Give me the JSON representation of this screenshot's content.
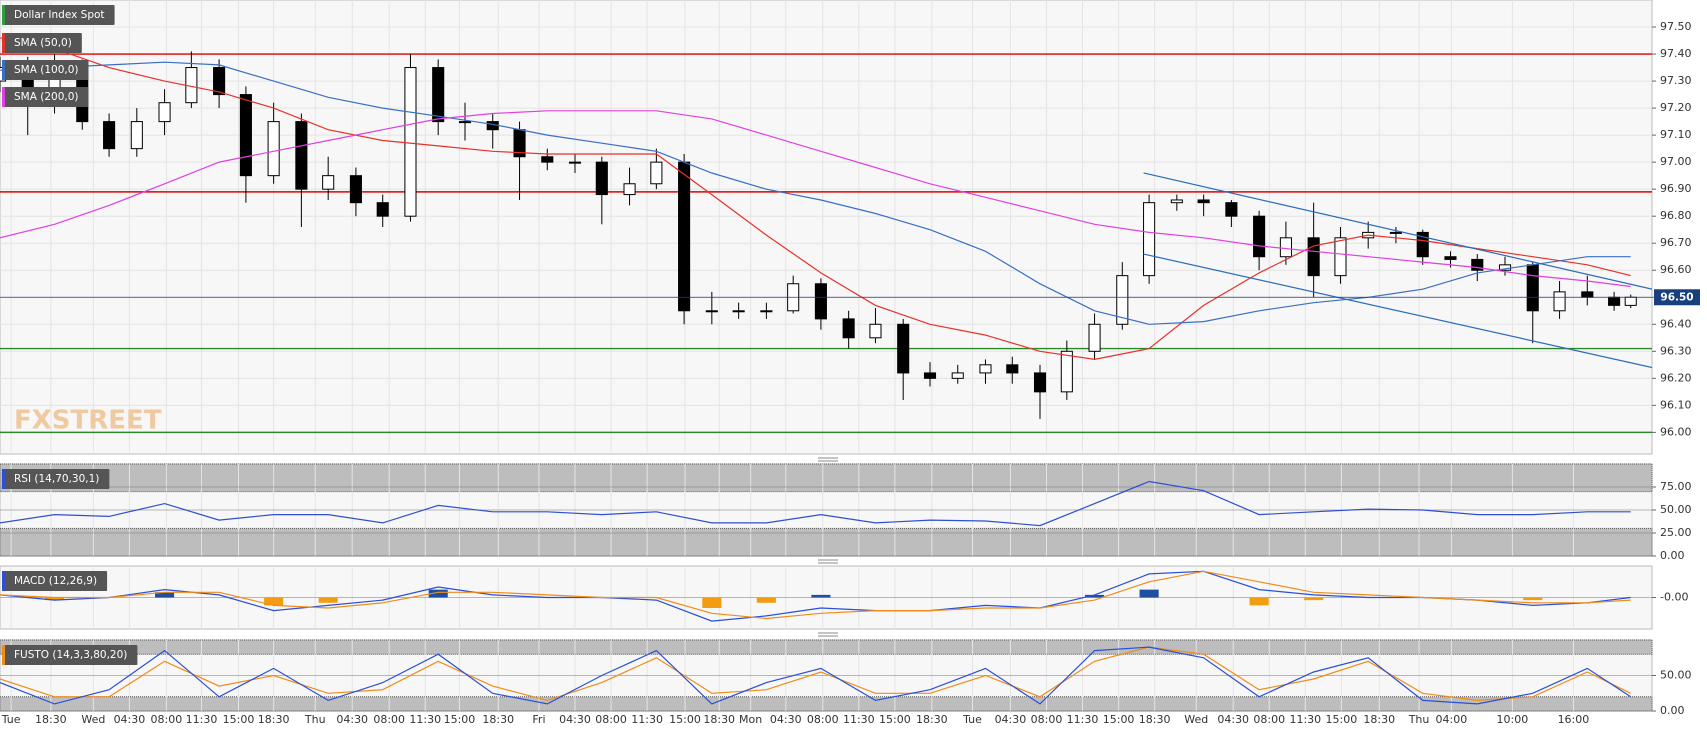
{
  "chart_data": [
    {
      "type": "candlestick",
      "title": "Dollar Index Spot",
      "title_color": "#2e9e3e",
      "xlim": [
        13.9,
        192.6
      ],
      "ylim": [
        95.92,
        97.6
      ],
      "xticks": [
        {
          "value": 15.1,
          "label": "Tue"
        },
        {
          "value": 19.4,
          "label": "18:30"
        },
        {
          "value": 24,
          "label": "Wed"
        },
        {
          "value": 27.9,
          "label": "04:30"
        },
        {
          "value": 31.9,
          "label": "08:00"
        },
        {
          "value": 35.7,
          "label": "11:30"
        },
        {
          "value": 39.7,
          "label": "15:00"
        },
        {
          "value": 43.5,
          "label": "18:30"
        },
        {
          "value": 48,
          "label": "Thu"
        },
        {
          "value": 52,
          "label": "04:30"
        },
        {
          "value": 56,
          "label": "08:00"
        },
        {
          "value": 59.9,
          "label": "11:30"
        },
        {
          "value": 63.6,
          "label": "15:00"
        },
        {
          "value": 67.8,
          "label": "18:30"
        },
        {
          "value": 72.2,
          "label": "Fri"
        },
        {
          "value": 76.1,
          "label": "04:30"
        },
        {
          "value": 80,
          "label": "08:00"
        },
        {
          "value": 83.9,
          "label": "11:30"
        },
        {
          "value": 88,
          "label": "15:00"
        },
        {
          "value": 91.7,
          "label": "18:30"
        },
        {
          "value": 95.1,
          "label": "Mon"
        },
        {
          "value": 98.9,
          "label": "04:30"
        },
        {
          "value": 102.9,
          "label": "08:00"
        },
        {
          "value": 106.8,
          "label": "11:30"
        },
        {
          "value": 110.7,
          "label": "15:00"
        },
        {
          "value": 114.7,
          "label": "18:30"
        },
        {
          "value": 119.1,
          "label": "Tue"
        },
        {
          "value": 123.2,
          "label": "04:30"
        },
        {
          "value": 127.1,
          "label": "08:00"
        },
        {
          "value": 131,
          "label": "11:30"
        },
        {
          "value": 134.9,
          "label": "15:00"
        },
        {
          "value": 138.8,
          "label": "18:30"
        },
        {
          "value": 143.3,
          "label": "Wed"
        },
        {
          "value": 147.3,
          "label": "04:30"
        },
        {
          "value": 151.2,
          "label": "08:00"
        },
        {
          "value": 155.1,
          "label": "11:30"
        },
        {
          "value": 159,
          "label": "15:00"
        },
        {
          "value": 163.1,
          "label": "18:30"
        },
        {
          "value": 167.4,
          "label": "Thu"
        },
        {
          "value": 170.9,
          "label": "04:00"
        },
        {
          "value": 177.5,
          "label": "10:00"
        },
        {
          "value": 184.1,
          "label": "16:00"
        }
      ],
      "yticks": [
        {
          "value": 96.0,
          "label": "96.00"
        },
        {
          "value": 96.1,
          "label": "96.10"
        },
        {
          "value": 96.2,
          "label": "96.20"
        },
        {
          "value": 96.3,
          "label": "96.30"
        },
        {
          "value": 96.4,
          "label": "96.40"
        },
        {
          "value": 96.5,
          "label": "96.50"
        },
        {
          "value": 96.6,
          "label": "96.60"
        },
        {
          "value": 96.7,
          "label": "96.70"
        },
        {
          "value": 96.8,
          "label": "96.80"
        },
        {
          "value": 96.9,
          "label": "96.90"
        },
        {
          "value": 97.0,
          "label": "97.00"
        },
        {
          "value": 97.1,
          "label": "97.10"
        },
        {
          "value": 97.2,
          "label": "97.20"
        },
        {
          "value": 97.3,
          "label": "97.30"
        },
        {
          "value": 97.4,
          "label": "97.40"
        },
        {
          "value": 97.5,
          "label": "97.50"
        }
      ],
      "grid": true,
      "candles": {
        "x": [
          13.9,
          16.9,
          19.8,
          22.8,
          25.7,
          28.7,
          31.7,
          34.6,
          37.6,
          40.5,
          43.5,
          46.5,
          49.4,
          52.4,
          55.3,
          58.3,
          61.3,
          64.2,
          67.2,
          70.1,
          73.1,
          76.1,
          79.0,
          82.0,
          84.9,
          87.9,
          90.9,
          93.8,
          96.8,
          99.7,
          102.7,
          105.7,
          108.6,
          111.6,
          114.5,
          117.5,
          120.5,
          123.4,
          126.4,
          129.3,
          132.3,
          135.3,
          138.2,
          141.2,
          144.1,
          147.1,
          150.1,
          153.0,
          156.0,
          158.9,
          161.9,
          164.9,
          167.8,
          170.8,
          173.7,
          176.7,
          179.7,
          182.6,
          185.6,
          188.5,
          190.3
        ],
        "open": [
          97.3,
          97.35,
          97.22,
          97.35,
          97.15,
          97.05,
          97.15,
          97.22,
          97.35,
          97.25,
          96.95,
          97.15,
          96.9,
          96.95,
          96.85,
          96.8,
          97.35,
          97.15,
          97.15,
          97.12,
          97.02,
          97.0,
          97.0,
          96.88,
          96.92,
          97.0,
          96.45,
          96.45,
          96.45,
          96.45,
          96.55,
          96.42,
          96.35,
          96.4,
          96.22,
          96.2,
          96.22,
          96.25,
          96.22,
          96.15,
          96.3,
          96.4,
          96.58,
          96.85,
          96.86,
          96.85,
          96.8,
          96.65,
          96.72,
          96.58,
          96.72,
          96.74,
          96.74,
          96.65,
          96.64,
          96.6,
          96.62,
          96.45,
          96.52,
          96.5,
          96.47
        ],
        "high": [
          97.39,
          97.39,
          97.4,
          97.38,
          97.18,
          97.2,
          97.27,
          97.41,
          97.38,
          97.28,
          97.22,
          97.18,
          97.02,
          96.98,
          96.88,
          97.4,
          97.38,
          97.22,
          97.18,
          97.15,
          97.05,
          97.03,
          97.02,
          96.98,
          97.05,
          97.03,
          96.52,
          96.48,
          96.48,
          96.58,
          96.57,
          96.45,
          96.46,
          96.42,
          96.26,
          96.25,
          96.27,
          96.28,
          96.25,
          96.34,
          96.44,
          96.63,
          96.88,
          96.88,
          96.88,
          96.86,
          96.82,
          96.78,
          96.85,
          96.76,
          96.78,
          96.76,
          96.75,
          96.67,
          96.66,
          96.65,
          96.63,
          96.56,
          96.58,
          96.52,
          96.51
        ],
        "low": [
          97.26,
          97.1,
          97.18,
          97.12,
          97.02,
          97.02,
          97.1,
          97.2,
          97.2,
          96.85,
          96.92,
          96.76,
          96.86,
          96.8,
          96.76,
          96.78,
          97.1,
          97.08,
          97.05,
          96.86,
          96.97,
          96.96,
          96.77,
          96.84,
          96.9,
          96.4,
          96.4,
          96.42,
          96.42,
          96.44,
          96.38,
          96.31,
          96.33,
          96.12,
          96.17,
          96.18,
          96.18,
          96.18,
          96.05,
          96.12,
          96.27,
          96.38,
          96.55,
          96.82,
          96.8,
          96.76,
          96.6,
          96.62,
          96.5,
          96.55,
          96.68,
          96.7,
          96.62,
          96.61,
          96.56,
          96.58,
          96.33,
          96.42,
          96.47,
          96.45,
          96.46
        ],
        "close": [
          97.35,
          97.22,
          97.35,
          97.15,
          97.05,
          97.15,
          97.22,
          97.35,
          97.25,
          96.95,
          97.15,
          96.9,
          96.95,
          96.85,
          96.8,
          97.35,
          97.15,
          97.15,
          97.12,
          97.02,
          97.0,
          97.0,
          96.88,
          96.92,
          97.0,
          96.45,
          96.45,
          96.45,
          96.45,
          96.55,
          96.42,
          96.35,
          96.4,
          96.22,
          96.2,
          96.22,
          96.25,
          96.22,
          96.15,
          96.3,
          96.4,
          96.58,
          96.85,
          96.86,
          96.85,
          96.8,
          96.65,
          96.72,
          96.58,
          96.72,
          96.74,
          96.74,
          96.65,
          96.64,
          96.6,
          96.62,
          96.45,
          96.52,
          96.5,
          96.47,
          96.5
        ]
      },
      "x": [
        13.9,
        19.8,
        25.7,
        31.7,
        37.6,
        43.5,
        49.4,
        55.3,
        61.3,
        67.2,
        73.1,
        79.0,
        84.9,
        90.9,
        96.8,
        102.7,
        108.6,
        114.5,
        120.5,
        126.4,
        132.3,
        138.2,
        144.1,
        150.1,
        156.0,
        161.9,
        167.8,
        173.7,
        179.7,
        185.6,
        190.3
      ],
      "series": [
        {
          "name": "SMA (50,0)",
          "color": "#e8302a",
          "values": [
            97.46,
            97.42,
            97.35,
            97.3,
            97.26,
            97.2,
            97.12,
            97.08,
            97.06,
            97.04,
            97.03,
            97.03,
            97.03,
            96.88,
            96.73,
            96.59,
            96.47,
            96.4,
            96.36,
            96.3,
            96.27,
            96.31,
            96.47,
            96.59,
            96.69,
            96.73,
            96.71,
            96.68,
            96.65,
            96.62,
            96.58
          ]
        },
        {
          "name": "SMA (100,0)",
          "color": "#3a6fc4",
          "values": [
            97.34,
            97.35,
            97.36,
            97.37,
            97.36,
            97.3,
            97.24,
            97.2,
            97.17,
            97.14,
            97.1,
            97.07,
            97.04,
            96.96,
            96.9,
            96.86,
            96.81,
            96.75,
            96.67,
            96.55,
            96.45,
            96.4,
            96.41,
            96.45,
            96.48,
            96.5,
            96.53,
            96.59,
            96.62,
            96.65,
            96.65
          ]
        },
        {
          "name": "SMA (200,0)",
          "color": "#e040e0",
          "values": [
            96.72,
            96.77,
            96.84,
            96.92,
            97.0,
            97.04,
            97.08,
            97.12,
            97.16,
            97.18,
            97.19,
            97.19,
            97.19,
            97.16,
            97.1,
            97.04,
            96.98,
            96.92,
            96.87,
            96.82,
            96.77,
            96.74,
            96.72,
            96.69,
            96.67,
            96.65,
            96.63,
            96.61,
            96.58,
            96.56,
            96.54
          ]
        }
      ],
      "levels": [
        {
          "value": 97.4,
          "color": "#e00000"
        },
        {
          "value": 96.89,
          "color": "#e00000"
        },
        {
          "value": 96.31,
          "color": "#2a8a2a"
        },
        {
          "value": 96.0,
          "color": "#2a8a2a"
        }
      ],
      "trendlines": [
        {
          "x": [
            137.6,
            192.6
          ],
          "values": [
            96.96,
            96.53
          ],
          "color": "#2a6cb8"
        },
        {
          "x": [
            137.6,
            192.6
          ],
          "values": [
            96.66,
            96.24
          ],
          "color": "#2a6cb8"
        }
      ],
      "last_price": {
        "value": 96.5,
        "label": "96.50",
        "color": "#1a3f7f"
      },
      "watermark": "FXSTREET"
    },
    {
      "type": "line",
      "title": "RSI (14,70,30,1)",
      "title_color": "#2f4fd0",
      "xlim": [
        13.9,
        192.6
      ],
      "ylim": [
        0,
        100
      ],
      "yticks": [
        {
          "value": 0,
          "label": "0.00"
        },
        {
          "value": 25,
          "label": "25.00"
        },
        {
          "value": 50,
          "label": "50.00"
        },
        {
          "value": 75,
          "label": "75.00"
        }
      ],
      "bands": [
        [
          70,
          100
        ],
        [
          0,
          30
        ]
      ],
      "x": [
        13.9,
        19.8,
        25.7,
        31.7,
        37.6,
        43.5,
        49.4,
        55.3,
        61.3,
        67.2,
        73.1,
        79.0,
        84.9,
        90.9,
        96.8,
        102.7,
        108.6,
        114.5,
        120.5,
        126.4,
        132.3,
        138.2,
        144.1,
        150.1,
        156.0,
        161.9,
        167.8,
        173.7,
        179.7,
        185.6,
        190.3
      ],
      "series": [
        {
          "color": "#2f4fd0",
          "values": [
            36,
            45,
            43,
            57,
            39,
            45,
            45,
            36,
            55,
            48,
            48,
            45,
            48,
            36,
            36,
            45,
            36,
            39,
            38,
            33,
            57,
            81,
            71,
            45,
            48,
            51,
            50,
            45,
            45,
            48,
            48
          ]
        }
      ]
    },
    {
      "type": "macd",
      "title": "MACD (12,26,9)",
      "title_color": "#2f4fd0",
      "xlim": [
        13.9,
        192.6
      ],
      "ylim": [
        -0.12,
        0.12
      ],
      "yticks": [
        {
          "value": 0,
          "label": "-0.00"
        }
      ],
      "x": [
        13.9,
        19.8,
        25.7,
        31.7,
        37.6,
        43.5,
        49.4,
        55.3,
        61.3,
        67.2,
        73.1,
        79.0,
        84.9,
        90.9,
        96.8,
        102.7,
        108.6,
        114.5,
        120.5,
        126.4,
        132.3,
        138.2,
        144.1,
        150.1,
        156.0,
        161.9,
        167.8,
        173.7,
        179.7,
        185.6,
        190.3
      ],
      "histogram": {
        "positive_color": "#1f4fa0",
        "negative_color": "#f39c12",
        "values": [
          0,
          -0.01,
          0,
          0.02,
          0,
          -0.03,
          -0.02,
          0,
          0.03,
          0,
          0,
          0,
          0,
          -0.04,
          -0.02,
          0.01,
          0,
          0,
          0,
          0,
          0.01,
          0.03,
          0,
          -0.03,
          -0.01,
          0,
          0,
          0,
          -0.01,
          0,
          0
        ]
      },
      "series": [
        {
          "color": "#2a4fd8",
          "values": [
            0.01,
            -0.01,
            0,
            0.03,
            0.01,
            -0.05,
            -0.03,
            -0.01,
            0.04,
            0.01,
            0,
            0,
            -0.01,
            -0.09,
            -0.07,
            -0.04,
            -0.05,
            -0.05,
            -0.03,
            -0.04,
            0.01,
            0.09,
            0.1,
            0.03,
            0.01,
            0,
            0,
            -0.01,
            -0.03,
            -0.02,
            0
          ]
        },
        {
          "color": "#f08c1a",
          "values": [
            0.01,
            0,
            0,
            0.02,
            0.02,
            -0.03,
            -0.04,
            -0.02,
            0.02,
            0.02,
            0.01,
            0,
            0,
            -0.06,
            -0.08,
            -0.06,
            -0.05,
            -0.05,
            -0.04,
            -0.04,
            -0.01,
            0.06,
            0.1,
            0.06,
            0.02,
            0.01,
            0,
            -0.01,
            -0.02,
            -0.02,
            -0.01
          ]
        }
      ]
    },
    {
      "type": "line",
      "title": "FUSTO (14,3,3,80,20)",
      "title_color": "#f08c1a",
      "xlim": [
        13.9,
        192.6
      ],
      "ylim": [
        0,
        100
      ],
      "yticks": [
        {
          "value": 0,
          "label": "0.00"
        },
        {
          "value": 50,
          "label": "50.00"
        }
      ],
      "bands": [
        [
          80,
          100
        ],
        [
          0,
          20
        ]
      ],
      "x": [
        13.9,
        19.8,
        25.7,
        31.7,
        37.6,
        43.5,
        49.4,
        55.3,
        61.3,
        67.2,
        73.1,
        79.0,
        84.9,
        90.9,
        96.8,
        102.7,
        108.6,
        114.5,
        120.5,
        126.4,
        132.3,
        138.2,
        144.1,
        150.1,
        156.0,
        161.9,
        167.8,
        173.7,
        179.7,
        185.6,
        190.3
      ],
      "series": [
        {
          "color": "#f08c1a",
          "values": [
            45,
            20,
            20,
            70,
            35,
            50,
            25,
            30,
            70,
            35,
            15,
            40,
            75,
            25,
            30,
            55,
            25,
            25,
            50,
            20,
            70,
            90,
            80,
            30,
            45,
            70,
            25,
            15,
            20,
            55,
            25
          ]
        },
        {
          "color": "#2a4fd8",
          "values": [
            40,
            10,
            30,
            85,
            20,
            60,
            15,
            40,
            80,
            25,
            10,
            50,
            85,
            10,
            40,
            60,
            15,
            30,
            60,
            10,
            85,
            90,
            75,
            20,
            55,
            75,
            15,
            10,
            25,
            60,
            20
          ]
        }
      ]
    }
  ]
}
